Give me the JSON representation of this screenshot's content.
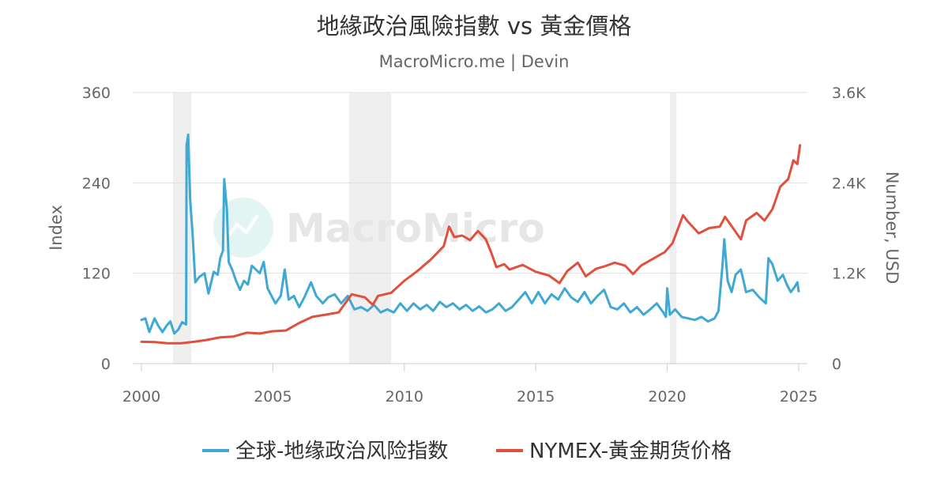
{
  "title": "地緣政治風險指數 vs 黃金價格",
  "subtitle": "MacroMicro.me | Devin",
  "watermark": "MacroMicro",
  "colors": {
    "gpr": "#3fa9d4",
    "gold": "#e1503c",
    "grid": "#e0e0e0",
    "recession": "#efefef"
  },
  "chart_data": {
    "type": "line",
    "x_axis": {
      "ticks": [
        "2000",
        "2005",
        "2010",
        "2015",
        "2020",
        "2025"
      ]
    },
    "y_left": {
      "label": "Index",
      "min": 0,
      "max": 360,
      "ticks": [
        "0",
        "120",
        "240",
        "360"
      ]
    },
    "y_right": {
      "label": "Number, USD",
      "min": 0,
      "max": 3600,
      "ticks": [
        "0",
        "1.2K",
        "2.4K",
        "3.6K"
      ]
    },
    "grid": true,
    "legend_position": "bottom",
    "shaded_periods": [
      [
        2001.2,
        2001.9
      ],
      [
        2007.9,
        2009.5
      ],
      [
        2020.1,
        2020.35
      ]
    ],
    "series": [
      {
        "name": "全球-地缘政治风险指数",
        "axis": "left",
        "color": "#3fa9d4",
        "points": [
          [
            2000.0,
            58
          ],
          [
            2000.15,
            60
          ],
          [
            2000.3,
            42
          ],
          [
            2000.5,
            60
          ],
          [
            2000.65,
            50
          ],
          [
            2000.8,
            42
          ],
          [
            2000.95,
            50
          ],
          [
            2001.1,
            56
          ],
          [
            2001.25,
            40
          ],
          [
            2001.4,
            45
          ],
          [
            2001.55,
            55
          ],
          [
            2001.7,
            52
          ],
          [
            2001.72,
            290
          ],
          [
            2001.78,
            304
          ],
          [
            2001.85,
            220
          ],
          [
            2001.95,
            170
          ],
          [
            2002.05,
            108
          ],
          [
            2002.2,
            115
          ],
          [
            2002.4,
            120
          ],
          [
            2002.55,
            93
          ],
          [
            2002.75,
            122
          ],
          [
            2002.9,
            118
          ],
          [
            2003.0,
            140
          ],
          [
            2003.1,
            150
          ],
          [
            2003.15,
            245
          ],
          [
            2003.25,
            205
          ],
          [
            2003.32,
            135
          ],
          [
            2003.45,
            125
          ],
          [
            2003.6,
            110
          ],
          [
            2003.75,
            98
          ],
          [
            2003.9,
            110
          ],
          [
            2004.05,
            105
          ],
          [
            2004.2,
            130
          ],
          [
            2004.35,
            125
          ],
          [
            2004.5,
            120
          ],
          [
            2004.65,
            135
          ],
          [
            2004.8,
            100
          ],
          [
            2004.95,
            90
          ],
          [
            2005.1,
            80
          ],
          [
            2005.3,
            90
          ],
          [
            2005.45,
            125
          ],
          [
            2005.6,
            85
          ],
          [
            2005.8,
            90
          ],
          [
            2006.0,
            75
          ],
          [
            2006.2,
            88
          ],
          [
            2006.45,
            108
          ],
          [
            2006.65,
            90
          ],
          [
            2006.9,
            80
          ],
          [
            2007.1,
            88
          ],
          [
            2007.35,
            92
          ],
          [
            2007.6,
            80
          ],
          [
            2007.85,
            90
          ],
          [
            2008.1,
            72
          ],
          [
            2008.35,
            75
          ],
          [
            2008.6,
            70
          ],
          [
            2008.85,
            78
          ],
          [
            2009.1,
            68
          ],
          [
            2009.35,
            72
          ],
          [
            2009.6,
            68
          ],
          [
            2009.85,
            80
          ],
          [
            2010.1,
            70
          ],
          [
            2010.35,
            80
          ],
          [
            2010.6,
            72
          ],
          [
            2010.85,
            78
          ],
          [
            2011.1,
            70
          ],
          [
            2011.35,
            82
          ],
          [
            2011.6,
            75
          ],
          [
            2011.85,
            80
          ],
          [
            2012.1,
            72
          ],
          [
            2012.35,
            78
          ],
          [
            2012.6,
            70
          ],
          [
            2012.85,
            76
          ],
          [
            2013.1,
            68
          ],
          [
            2013.35,
            72
          ],
          [
            2013.6,
            80
          ],
          [
            2013.85,
            70
          ],
          [
            2014.1,
            75
          ],
          [
            2014.35,
            85
          ],
          [
            2014.6,
            95
          ],
          [
            2014.85,
            80
          ],
          [
            2015.1,
            95
          ],
          [
            2015.35,
            80
          ],
          [
            2015.6,
            92
          ],
          [
            2015.85,
            85
          ],
          [
            2016.1,
            100
          ],
          [
            2016.35,
            88
          ],
          [
            2016.6,
            82
          ],
          [
            2016.85,
            95
          ],
          [
            2017.1,
            80
          ],
          [
            2017.35,
            90
          ],
          [
            2017.6,
            98
          ],
          [
            2017.85,
            75
          ],
          [
            2018.1,
            72
          ],
          [
            2018.35,
            80
          ],
          [
            2018.6,
            68
          ],
          [
            2018.85,
            75
          ],
          [
            2019.1,
            65
          ],
          [
            2019.35,
            72
          ],
          [
            2019.6,
            80
          ],
          [
            2019.85,
            68
          ],
          [
            2019.95,
            62
          ],
          [
            2020.0,
            100
          ],
          [
            2020.1,
            65
          ],
          [
            2020.3,
            72
          ],
          [
            2020.55,
            62
          ],
          [
            2020.8,
            60
          ],
          [
            2021.05,
            58
          ],
          [
            2021.3,
            62
          ],
          [
            2021.55,
            56
          ],
          [
            2021.8,
            60
          ],
          [
            2021.95,
            70
          ],
          [
            2022.1,
            130
          ],
          [
            2022.17,
            165
          ],
          [
            2022.3,
            110
          ],
          [
            2022.45,
            95
          ],
          [
            2022.6,
            118
          ],
          [
            2022.8,
            125
          ],
          [
            2023.0,
            95
          ],
          [
            2023.25,
            98
          ],
          [
            2023.5,
            88
          ],
          [
            2023.75,
            80
          ],
          [
            2023.85,
            140
          ],
          [
            2024.0,
            132
          ],
          [
            2024.2,
            110
          ],
          [
            2024.4,
            118
          ],
          [
            2024.55,
            105
          ],
          [
            2024.7,
            95
          ],
          [
            2024.85,
            102
          ],
          [
            2024.95,
            108
          ],
          [
            2025.0,
            96
          ]
        ]
      },
      {
        "name": "NYMEX-黃金期货价格",
        "axis": "right",
        "color": "#e1503c",
        "points": [
          [
            2000.0,
            290
          ],
          [
            2000.5,
            285
          ],
          [
            2001.0,
            270
          ],
          [
            2001.5,
            270
          ],
          [
            2002.0,
            290
          ],
          [
            2002.5,
            315
          ],
          [
            2003.0,
            350
          ],
          [
            2003.5,
            360
          ],
          [
            2004.0,
            410
          ],
          [
            2004.5,
            400
          ],
          [
            2005.0,
            430
          ],
          [
            2005.5,
            440
          ],
          [
            2006.0,
            540
          ],
          [
            2006.5,
            620
          ],
          [
            2007.0,
            650
          ],
          [
            2007.5,
            680
          ],
          [
            2008.0,
            920
          ],
          [
            2008.5,
            880
          ],
          [
            2008.8,
            780
          ],
          [
            2009.0,
            900
          ],
          [
            2009.5,
            940
          ],
          [
            2010.0,
            1100
          ],
          [
            2010.5,
            1230
          ],
          [
            2011.0,
            1380
          ],
          [
            2011.5,
            1560
          ],
          [
            2011.7,
            1820
          ],
          [
            2011.9,
            1680
          ],
          [
            2012.2,
            1700
          ],
          [
            2012.5,
            1640
          ],
          [
            2012.8,
            1760
          ],
          [
            2013.1,
            1650
          ],
          [
            2013.3,
            1480
          ],
          [
            2013.5,
            1280
          ],
          [
            2013.8,
            1320
          ],
          [
            2014.0,
            1250
          ],
          [
            2014.5,
            1310
          ],
          [
            2015.0,
            1220
          ],
          [
            2015.5,
            1170
          ],
          [
            2015.9,
            1070
          ],
          [
            2016.2,
            1230
          ],
          [
            2016.6,
            1340
          ],
          [
            2016.9,
            1160
          ],
          [
            2017.3,
            1260
          ],
          [
            2017.6,
            1290
          ],
          [
            2018.0,
            1340
          ],
          [
            2018.4,
            1300
          ],
          [
            2018.7,
            1190
          ],
          [
            2019.0,
            1300
          ],
          [
            2019.5,
            1400
          ],
          [
            2019.9,
            1480
          ],
          [
            2020.2,
            1600
          ],
          [
            2020.6,
            1970
          ],
          [
            2020.8,
            1880
          ],
          [
            2021.2,
            1730
          ],
          [
            2021.6,
            1800
          ],
          [
            2022.0,
            1820
          ],
          [
            2022.2,
            1950
          ],
          [
            2022.4,
            1850
          ],
          [
            2022.8,
            1650
          ],
          [
            2023.0,
            1900
          ],
          [
            2023.4,
            2000
          ],
          [
            2023.7,
            1900
          ],
          [
            2024.0,
            2050
          ],
          [
            2024.3,
            2350
          ],
          [
            2024.6,
            2450
          ],
          [
            2024.8,
            2700
          ],
          [
            2024.95,
            2650
          ],
          [
            2025.05,
            2900
          ]
        ]
      }
    ]
  }
}
